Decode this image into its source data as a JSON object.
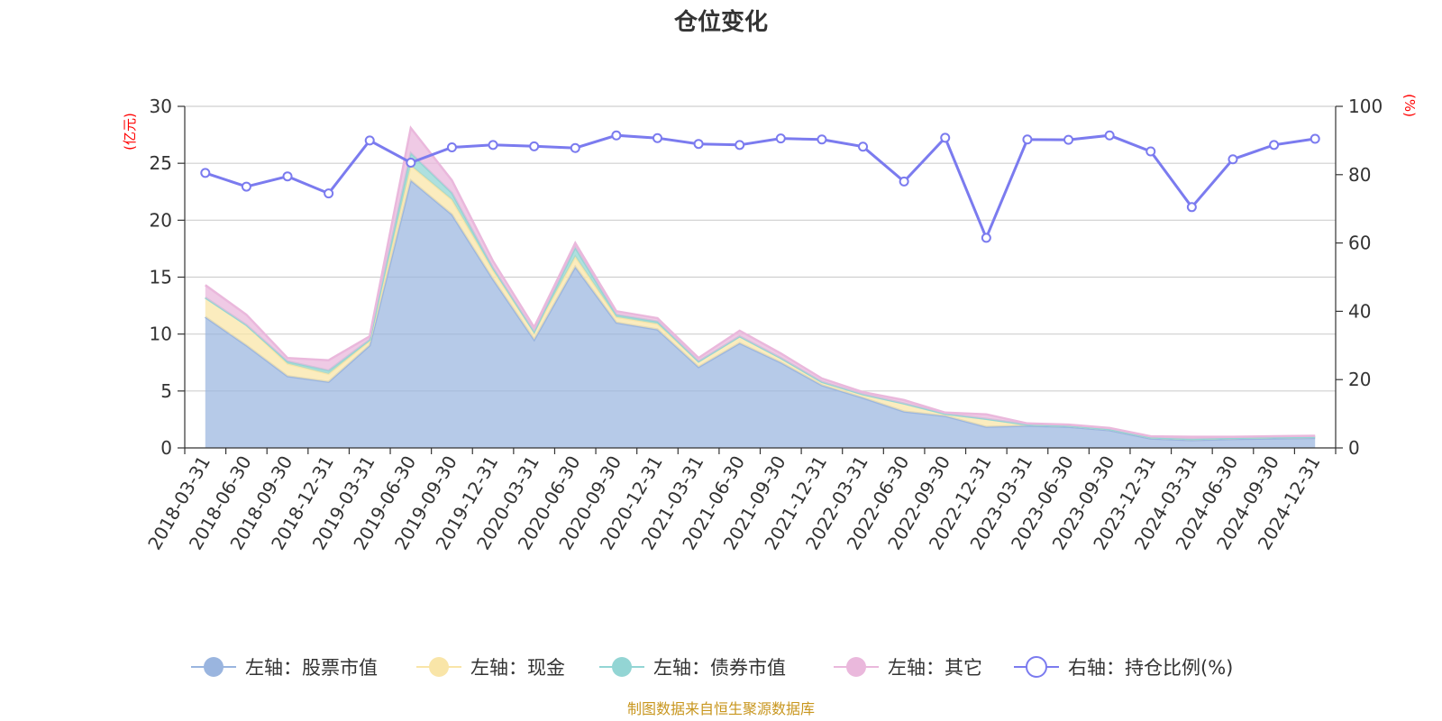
{
  "chart_data": {
    "type": "area",
    "title": "仓位变化",
    "left_unit": "(亿元)",
    "right_unit": "(%)",
    "left_ylim": [
      0,
      30
    ],
    "left_ticks": [
      "0",
      "5",
      "10",
      "15",
      "20",
      "25",
      "30"
    ],
    "right_ylim": [
      0,
      100
    ],
    "right_ticks": [
      "0",
      "20",
      "40",
      "60",
      "80",
      "100"
    ],
    "grid": true,
    "legend_position": "bottom",
    "categories": [
      "2018-03-31",
      "2018-06-30",
      "2018-09-30",
      "2018-12-31",
      "2019-03-31",
      "2019-06-30",
      "2019-09-30",
      "2019-12-31",
      "2020-03-31",
      "2020-06-30",
      "2020-09-30",
      "2020-12-31",
      "2021-03-31",
      "2021-06-30",
      "2021-09-30",
      "2021-12-31",
      "2022-03-31",
      "2022-06-30",
      "2022-09-30",
      "2022-12-31",
      "2023-03-31",
      "2023-06-30",
      "2023-09-30",
      "2023-12-31",
      "2024-03-31",
      "2024-06-30",
      "2024-09-30",
      "2024-12-31"
    ],
    "series": [
      {
        "name": "左轴：股票市值",
        "axis": "left",
        "type": "area",
        "color": "#9ab5df",
        "values": [
          11.5,
          9.0,
          6.3,
          5.8,
          9.0,
          23.5,
          20.5,
          14.8,
          9.5,
          15.9,
          11.0,
          10.4,
          7.1,
          9.2,
          7.5,
          5.5,
          4.4,
          3.2,
          2.8,
          1.85,
          1.95,
          1.85,
          1.55,
          0.82,
          0.68,
          0.78,
          0.83,
          0.87
        ]
      },
      {
        "name": "左轴：现金",
        "axis": "left",
        "type": "area",
        "color": "#f9e5a8",
        "values": [
          1.7,
          1.8,
          1.1,
          0.7,
          0.4,
          1.3,
          1.3,
          0.8,
          0.7,
          0.9,
          0.5,
          0.5,
          0.5,
          0.6,
          0.4,
          0.3,
          0.3,
          0.7,
          0.2,
          0.7,
          0.1,
          0.1,
          0.1,
          0.1,
          0.1,
          0.1,
          0.1,
          0.1
        ]
      },
      {
        "name": "左轴：债券市值",
        "axis": "left",
        "type": "area",
        "color": "#93d5d4",
        "values": [
          0.0,
          0.0,
          0.2,
          0.3,
          0.1,
          1.1,
          0.6,
          0.2,
          0.0,
          0.8,
          0.2,
          0.2,
          0.0,
          0.0,
          0.0,
          0.0,
          0.0,
          0.0,
          0.0,
          0.0,
          0.0,
          0.0,
          0.0,
          0.0,
          0.0,
          0.0,
          0.0,
          0.0
        ]
      },
      {
        "name": "左轴：其它",
        "axis": "left",
        "type": "area",
        "color": "#eab8dc",
        "values": [
          1.1,
          0.9,
          0.3,
          0.9,
          0.3,
          2.2,
          1.1,
          0.6,
          0.4,
          0.4,
          0.3,
          0.3,
          0.3,
          0.5,
          0.4,
          0.3,
          0.2,
          0.3,
          0.1,
          0.4,
          0.1,
          0.1,
          0.1,
          0.1,
          0.2,
          0.1,
          0.1,
          0.1
        ]
      },
      {
        "name": "右轴：持仓比例(%)",
        "axis": "right",
        "type": "line",
        "color": "#7b7bef",
        "values": [
          80.5,
          76.5,
          79.5,
          74.5,
          90.0,
          83.5,
          88.0,
          88.7,
          88.3,
          87.8,
          91.5,
          90.7,
          89.0,
          88.7,
          90.6,
          90.3,
          88.2,
          78.0,
          90.8,
          61.5,
          90.3,
          90.2,
          91.5,
          86.8,
          70.5,
          84.5,
          88.7,
          90.5
        ]
      }
    ]
  },
  "source_text": "制图数据来自恒生聚源数据库"
}
